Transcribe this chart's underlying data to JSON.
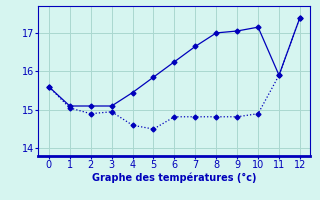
{
  "x": [
    0,
    1,
    2,
    3,
    4,
    5,
    6,
    7,
    8,
    9,
    10,
    11,
    12
  ],
  "line1": [
    15.6,
    15.1,
    15.1,
    15.1,
    15.45,
    15.85,
    16.25,
    16.65,
    17.0,
    17.05,
    17.15,
    15.9,
    17.4
  ],
  "line2": [
    15.6,
    15.05,
    14.9,
    14.95,
    14.6,
    14.5,
    14.82,
    14.82,
    14.82,
    14.82,
    14.9,
    15.9,
    17.4
  ],
  "line_color": "#0000bb",
  "markersize": 2.5,
  "xlabel": "Graphe des températures (°c)",
  "xlim": [
    -0.5,
    12.5
  ],
  "ylim": [
    13.8,
    17.7
  ],
  "yticks": [
    14,
    15,
    16,
    17
  ],
  "xticks": [
    0,
    1,
    2,
    3,
    4,
    5,
    6,
    7,
    8,
    9,
    10,
    11,
    12
  ],
  "bg_color": "#d6f5f0",
  "grid_color": "#aad8d0",
  "xlabel_fontsize": 7,
  "tick_fontsize": 7
}
